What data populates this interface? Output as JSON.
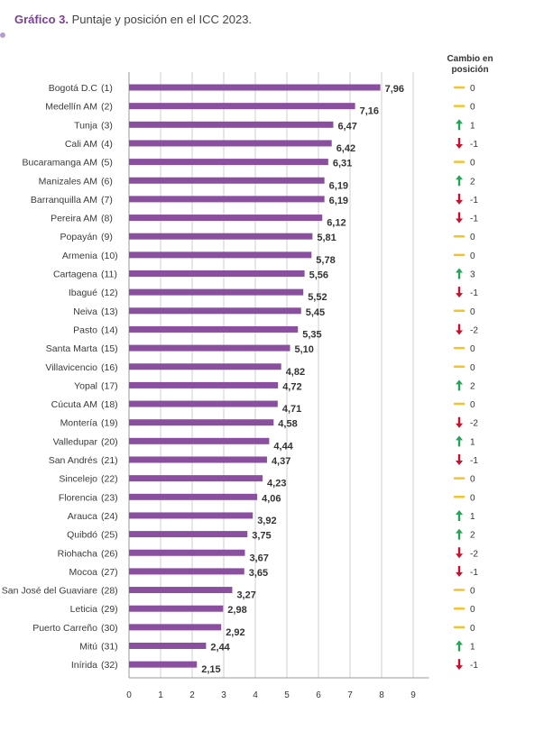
{
  "title": {
    "label": "Gráfico 3.",
    "text": " Puntaje y posición en el ICC 2023."
  },
  "change_header": "Cambio en posición",
  "colors": {
    "bar": "#8a4f9e",
    "up": "#27a25a",
    "down": "#c8102e",
    "same": "#f2c230",
    "grid": "#cfcfcf",
    "title_accent": "#7b3f93"
  },
  "chart_data": {
    "type": "bar",
    "orientation": "horizontal",
    "title": "Gráfico 3. Puntaje y posición en el ICC 2023.",
    "xlim": [
      0,
      9
    ],
    "x_ticks": [
      "0",
      "1",
      "2",
      "3",
      "4",
      "5",
      "6",
      "7",
      "8",
      "9"
    ],
    "grid": true,
    "categories": [
      "Bogotá D.C",
      "Medellín AM",
      "Tunja",
      "Cali AM",
      "Bucaramanga AM",
      "Manizales AM",
      "Barranquilla AM",
      "Pereira AM",
      "Popayán",
      "Armenia",
      "Cartagena",
      "Ibagué",
      "Neiva",
      "Pasto",
      "Santa Marta",
      "Villavicencio",
      "Yopal",
      "Cúcuta AM",
      "Montería",
      "Valledupar",
      "San Andrés",
      "Sincelejo",
      "Florencia",
      "Arauca",
      "Quibdó",
      "Riohacha",
      "Mocoa",
      "San José del Guaviare",
      "Leticia",
      "Puerto Carreño",
      "Mitú",
      "Inírida"
    ],
    "positions": [
      "(1)",
      "(2)",
      "(3)",
      "(4)",
      "(5)",
      "(6)",
      "(7)",
      "(8)",
      "(9)",
      "(10)",
      "(11)",
      "(12)",
      "(13)",
      "(14)",
      "(15)",
      "(16)",
      "(17)",
      "(18)",
      "(19)",
      "(20)",
      "(21)",
      "(22)",
      "(23)",
      "(24)",
      "(25)",
      "(26)",
      "(27)",
      "(28)",
      "(29)",
      "(30)",
      "(31)",
      "(32)"
    ],
    "values": [
      7.96,
      7.16,
      6.47,
      6.42,
      6.31,
      6.19,
      6.19,
      6.12,
      5.81,
      5.78,
      5.56,
      5.52,
      5.45,
      5.35,
      5.1,
      4.82,
      4.72,
      4.71,
      4.58,
      4.44,
      4.37,
      4.23,
      4.06,
      3.92,
      3.75,
      3.67,
      3.65,
      3.27,
      2.98,
      2.92,
      2.44,
      2.15
    ],
    "value_labels": [
      "7,96",
      "7,16",
      "6,47",
      "6,42",
      "6,31",
      "6,19",
      "6,19",
      "6,12",
      "5,81",
      "5,78",
      "5,56",
      "5,52",
      "5,45",
      "5,35",
      "5,10",
      "4,82",
      "4,72",
      "4,71",
      "4,58",
      "4,44",
      "4,37",
      "4,23",
      "4,06",
      "3,92",
      "3,75",
      "3,67",
      "3,65",
      "3,27",
      "2,98",
      "2,92",
      "2,44",
      "2,15"
    ],
    "position_change": [
      "0",
      "0",
      "1",
      "-1",
      "0",
      "2",
      "-1",
      "-1",
      "0",
      "0",
      "3",
      "-1",
      "0",
      "-2",
      "0",
      "0",
      "2",
      "0",
      "-2",
      "1",
      "-1",
      "0",
      "0",
      "1",
      "2",
      "-2",
      "-1",
      "0",
      "0",
      "0",
      "1",
      "-1"
    ],
    "change_direction": [
      "same",
      "same",
      "up",
      "down",
      "same",
      "up",
      "down",
      "down",
      "same",
      "same",
      "up",
      "down",
      "same",
      "down",
      "same",
      "same",
      "up",
      "same",
      "down",
      "up",
      "down",
      "same",
      "same",
      "up",
      "up",
      "down",
      "down",
      "same",
      "same",
      "same",
      "up",
      "down"
    ]
  }
}
